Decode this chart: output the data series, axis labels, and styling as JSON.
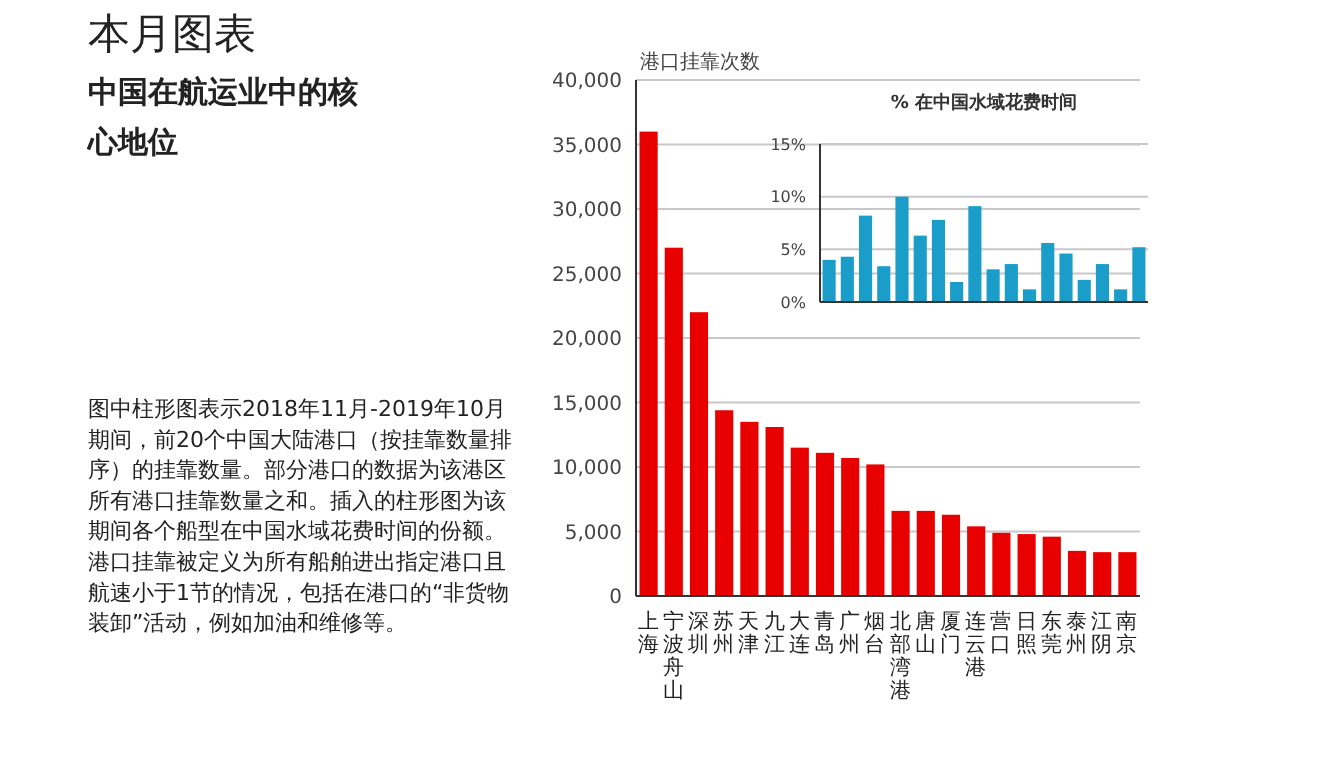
{
  "chart_data": [
    {
      "type": "other",
      "title": "本月图表",
      "subtitle": "中国在航运业中的核心地位",
      "annotations": [
        "图中柱形图表示2018年11月-2019年10月期间，前20个中国大陆港口（按挂靠数量排序）的挂靠数量。部分港口的数据为该港区所有港口挂靠数量之和。插入的柱形图为该期间各个船型在中国水域花费时间的份额。港口挂靠被定义为所有船舶进出指定港口且航速小于1节的情况，包括在港口的“非货物装卸”活动，例如加油和维修等。"
      ]
    },
    {
      "type": "bar",
      "ylabel": "港口挂靠次数",
      "categories": [
        "上海",
        "宁波舟山",
        "深圳",
        "苏州",
        "天津",
        "九江",
        "大连",
        "青岛",
        "广州",
        "烟台",
        "北部湾港",
        "唐山",
        "厦门",
        "连云港",
        "营口",
        "日照",
        "东莞",
        "泰州",
        "江阴",
        "南京"
      ],
      "values": [
        36000,
        27000,
        22000,
        14400,
        13500,
        13100,
        11500,
        11100,
        10700,
        10200,
        6600,
        6600,
        6300,
        5400,
        4900,
        4800,
        4600,
        3500,
        3400,
        3400
      ],
      "color": "#e80000",
      "ylim": [
        0,
        40000
      ],
      "yticks": [
        0,
        {
          "value": 5000,
          "label": "5,000"
        },
        {
          "value": 10000,
          "label": "10,000"
        },
        {
          "value": 15000,
          "label": "15,000"
        },
        {
          "value": 20000,
          "label": "20,000"
        },
        {
          "value": 25000,
          "label": "25,000"
        },
        {
          "value": 30000,
          "label": "30,000"
        },
        {
          "value": 35000,
          "label": "35,000"
        },
        {
          "value": 40000,
          "label": "40,000"
        }
      ],
      "grid": "y"
    },
    {
      "type": "bar",
      "title": "% 在中国水域花费时间",
      "categories": [
        null,
        null,
        null,
        null,
        null,
        null,
        null,
        null,
        null,
        null,
        null,
        null,
        null,
        null,
        null,
        null,
        null,
        null
      ],
      "values": [
        4.0,
        4.3,
        8.2,
        3.4,
        10.0,
        6.3,
        7.8,
        1.9,
        9.1,
        3.1,
        3.6,
        1.2,
        5.6,
        4.6,
        2.1,
        3.6,
        1.2,
        5.2
      ],
      "color": "#1b9dc9",
      "ylim": [
        0,
        15
      ],
      "yticks": [
        {
          "value": 0,
          "label": "0%"
        },
        {
          "value": 5,
          "label": "5%"
        },
        {
          "value": 10,
          "label": "10%"
        },
        {
          "value": 15,
          "label": "15%"
        }
      ],
      "grid": "y"
    }
  ]
}
